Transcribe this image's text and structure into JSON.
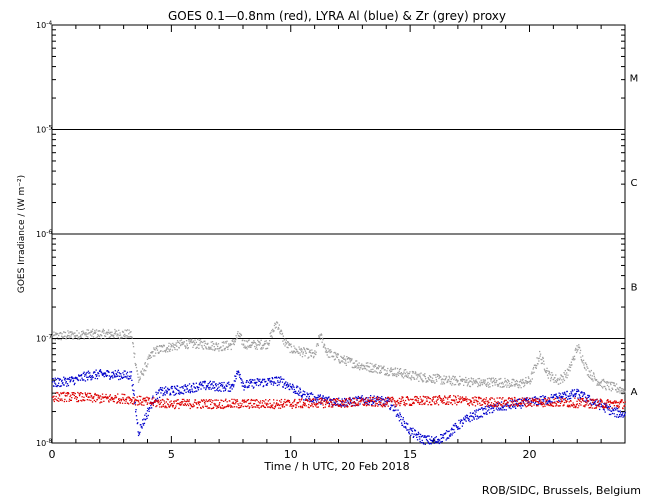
{
  "chart_data": {
    "type": "scatter",
    "title": "GOES 0.1—0.8nm (red), LYRA Al (blue) & Zr (grey) proxy",
    "xlabel": "Time / h UTC, 20 Feb 2018",
    "ylabel": "GOES Irradiance / (W m⁻²)",
    "x_range": [
      0,
      24
    ],
    "y_range": [
      1e-08,
      0.0001
    ],
    "y_scale": "log",
    "x_ticks": [
      0,
      5,
      10,
      15,
      20
    ],
    "y_ticks": [
      {
        "value": 0.0001,
        "base": "10",
        "exp": "-4"
      },
      {
        "value": 1e-05,
        "base": "10",
        "exp": "-5"
      },
      {
        "value": 1e-06,
        "base": "10",
        "exp": "-6"
      },
      {
        "value": 1e-07,
        "base": "10",
        "exp": "-7"
      },
      {
        "value": 1e-08,
        "base": "10",
        "exp": "-8"
      }
    ],
    "flare_class_lines": [
      1e-05,
      1e-06,
      1e-07
    ],
    "flare_classes": [
      {
        "label": "M",
        "value": 3.16e-05
      },
      {
        "label": "C",
        "value": 3.16e-06
      },
      {
        "label": "B",
        "value": 3.16e-07
      },
      {
        "label": "A",
        "value": 3.16e-08
      }
    ],
    "series": [
      {
        "color": "#a0a0a0",
        "points": [
          [
            0,
            1.05e-07
          ],
          [
            0.5,
            1.08e-07
          ],
          [
            1,
            1.1e-07
          ],
          [
            1.5,
            1.12e-07
          ],
          [
            2,
            1.12e-07
          ],
          [
            2.5,
            1.12e-07
          ],
          [
            3,
            1.12e-07
          ],
          [
            3.3,
            1.1e-07
          ],
          [
            3.6,
            4e-08
          ],
          [
            3.9,
            5.5e-08
          ],
          [
            4.2,
            7.5e-08
          ],
          [
            4.5,
            8e-08
          ],
          [
            5,
            8.5e-08
          ],
          [
            5.5,
            9e-08
          ],
          [
            6,
            9e-08
          ],
          [
            6.5,
            8.8e-08
          ],
          [
            7,
            8.5e-08
          ],
          [
            7.5,
            8.8e-08
          ],
          [
            7.8,
            1.1e-07
          ],
          [
            8,
            9e-08
          ],
          [
            8.5,
            8.8e-08
          ],
          [
            9,
            9e-08
          ],
          [
            9.4,
            1.45e-07
          ],
          [
            9.7,
            9.5e-08
          ],
          [
            10,
            8e-08
          ],
          [
            10.5,
            7.5e-08
          ],
          [
            11,
            7e-08
          ],
          [
            11.2,
            1.1e-07
          ],
          [
            11.5,
            7.5e-08
          ],
          [
            12,
            6.5e-08
          ],
          [
            12.5,
            6e-08
          ],
          [
            13,
            5.5e-08
          ],
          [
            13.5,
            5.3e-08
          ],
          [
            14,
            5e-08
          ],
          [
            14.5,
            4.8e-08
          ],
          [
            15,
            4.5e-08
          ],
          [
            15.5,
            4.3e-08
          ],
          [
            16,
            4.2e-08
          ],
          [
            16.5,
            4e-08
          ],
          [
            17,
            4e-08
          ],
          [
            17.5,
            3.9e-08
          ],
          [
            18,
            3.8e-08
          ],
          [
            18.5,
            3.9e-08
          ],
          [
            19,
            3.8e-08
          ],
          [
            19.5,
            3.7e-08
          ],
          [
            20,
            4e-08
          ],
          [
            20.4,
            7e-08
          ],
          [
            20.8,
            4.5e-08
          ],
          [
            21.2,
            4e-08
          ],
          [
            21.6,
            4.8e-08
          ],
          [
            22,
            8.5e-08
          ],
          [
            22.4,
            5e-08
          ],
          [
            22.8,
            4e-08
          ],
          [
            23.2,
            3.6e-08
          ],
          [
            23.6,
            3.4e-08
          ],
          [
            24,
            3.2e-08
          ]
        ]
      },
      {
        "color": "#0000cc",
        "points": [
          [
            0,
            3.8e-08
          ],
          [
            0.5,
            3.9e-08
          ],
          [
            1,
            4.1e-08
          ],
          [
            1.5,
            4.5e-08
          ],
          [
            2,
            4.6e-08
          ],
          [
            2.5,
            4.6e-08
          ],
          [
            3,
            4.5e-08
          ],
          [
            3.3,
            4.5e-08
          ],
          [
            3.6,
            1.3e-08
          ],
          [
            3.9,
            1.8e-08
          ],
          [
            4.2,
            2.6e-08
          ],
          [
            4.5,
            3.1e-08
          ],
          [
            5,
            3.2e-08
          ],
          [
            5.5,
            3.3e-08
          ],
          [
            6,
            3.5e-08
          ],
          [
            6.5,
            3.6e-08
          ],
          [
            7,
            3.5e-08
          ],
          [
            7.5,
            3.5e-08
          ],
          [
            7.8,
            5e-08
          ],
          [
            8,
            3.6e-08
          ],
          [
            8.5,
            3.8e-08
          ],
          [
            9,
            3.9e-08
          ],
          [
            9.5,
            4e-08
          ],
          [
            10,
            3.5e-08
          ],
          [
            10.5,
            2.9e-08
          ],
          [
            11,
            2.7e-08
          ],
          [
            11.5,
            2.6e-08
          ],
          [
            12,
            2.5e-08
          ],
          [
            12.5,
            2.5e-08
          ],
          [
            13,
            2.6e-08
          ],
          [
            13.5,
            2.6e-08
          ],
          [
            14,
            2.5e-08
          ],
          [
            14.3,
            2.2e-08
          ],
          [
            14.6,
            1.7e-08
          ],
          [
            15,
            1.3e-08
          ],
          [
            15.5,
            1.1e-08
          ],
          [
            16,
            1.05e-08
          ],
          [
            16.5,
            1.2e-08
          ],
          [
            17,
            1.5e-08
          ],
          [
            17.5,
            1.8e-08
          ],
          [
            18,
            2e-08
          ],
          [
            18.5,
            2.2e-08
          ],
          [
            19,
            2.3e-08
          ],
          [
            19.5,
            2.4e-08
          ],
          [
            20,
            2.5e-08
          ],
          [
            20.5,
            2.6e-08
          ],
          [
            21,
            2.7e-08
          ],
          [
            21.5,
            2.9e-08
          ],
          [
            22,
            3e-08
          ],
          [
            22.5,
            2.6e-08
          ],
          [
            23,
            2.3e-08
          ],
          [
            23.5,
            2e-08
          ],
          [
            24,
            1.9e-08
          ]
        ]
      },
      {
        "color": "#dd0000",
        "points": [
          [
            0,
            2.8e-08
          ],
          [
            1,
            2.8e-08
          ],
          [
            2,
            2.7e-08
          ],
          [
            3,
            2.7e-08
          ],
          [
            4,
            2.5e-08
          ],
          [
            5,
            2.4e-08
          ],
          [
            6,
            2.4e-08
          ],
          [
            7,
            2.4e-08
          ],
          [
            8,
            2.4e-08
          ],
          [
            9,
            2.4e-08
          ],
          [
            10,
            2.4e-08
          ],
          [
            11,
            2.45e-08
          ],
          [
            12,
            2.45e-08
          ],
          [
            13,
            2.5e-08
          ],
          [
            14,
            2.5e-08
          ],
          [
            15,
            2.55e-08
          ],
          [
            16,
            2.6e-08
          ],
          [
            17,
            2.6e-08
          ],
          [
            18,
            2.5e-08
          ],
          [
            19,
            2.5e-08
          ],
          [
            20,
            2.5e-08
          ],
          [
            21,
            2.5e-08
          ],
          [
            22,
            2.45e-08
          ],
          [
            23,
            2.4e-08
          ],
          [
            24,
            2.4e-08
          ]
        ]
      }
    ]
  },
  "credit": "ROB/SIDC, Brussels, Belgium"
}
